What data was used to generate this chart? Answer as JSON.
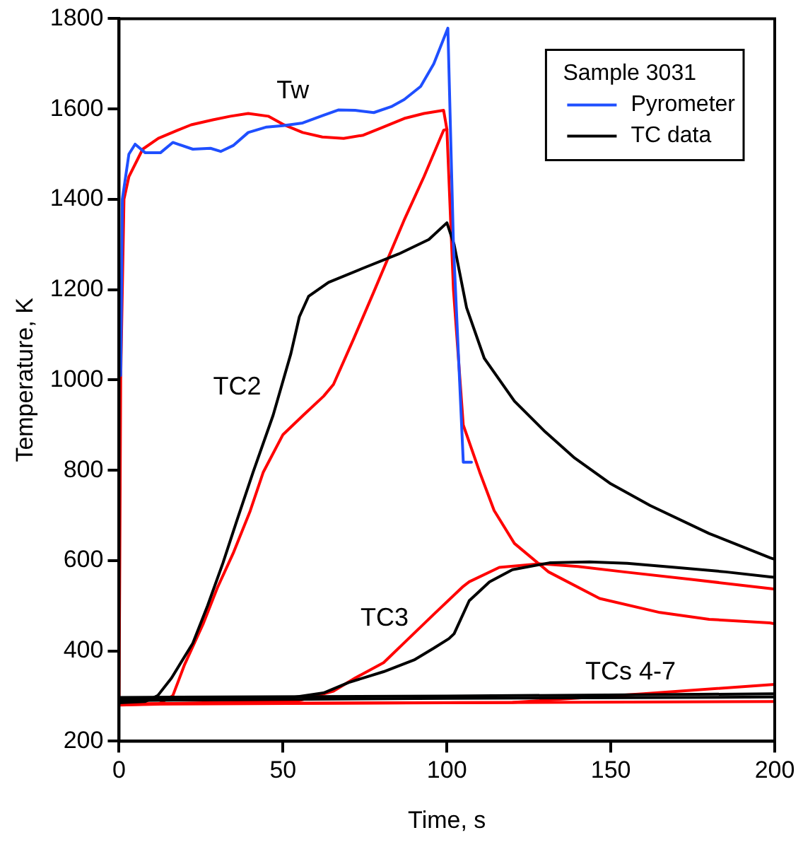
{
  "chart_data": {
    "type": "line",
    "xlabel": "Time, s",
    "ylabel": "Temperature, K",
    "legend_title": "Sample 3031",
    "legend": "top right",
    "grid": false,
    "marker": "none",
    "line_style": "solid",
    "xlim": [
      0,
      200
    ],
    "xticks": [
      0,
      50,
      100,
      150,
      200
    ],
    "ylim": [
      200,
      1800
    ],
    "yticks": [
      200,
      400,
      600,
      800,
      1000,
      1200,
      1400,
      1600,
      1800
    ],
    "annotations": [
      "Tw",
      "TC2",
      "TC3",
      "TCs 4-7"
    ],
    "series": [
      {
        "name": "Pyrometer",
        "color": "#1f4fff",
        "x": [
          0.5,
          1,
          3,
          4.9,
          8,
          12.6,
          16.4,
          22.5,
          27.9,
          31,
          34.8,
          39.4,
          45,
          50,
          56,
          62,
          67,
          72,
          77.7,
          83,
          87,
          92,
          96,
          100.3,
          102,
          105,
          107.5
        ],
        "values": [
          1010,
          1400,
          1500,
          1522,
          1503,
          1503,
          1526,
          1511,
          1513,
          1506,
          1519,
          1548,
          1560,
          1563,
          1569,
          1585,
          1598,
          1597,
          1592,
          1605,
          1621,
          1650,
          1700,
          1779,
          1300,
          818,
          818
        ]
      },
      {
        "name": "TC data",
        "color": "#000000",
        "x": [
          0,
          8,
          11.8,
          16,
          22.5,
          27,
          31.7,
          36,
          40.9,
          47,
          52.4,
          55,
          57.8,
          63.9,
          74.6,
          85.3,
          94.5,
          100,
          102.2,
          106,
          111.4,
          120.6,
          130,
          139,
          150,
          162,
          180,
          198.7,
          200
        ],
        "values": [
          285,
          288,
          301,
          340,
          417,
          500,
          595,
          690,
          796,
          922,
          1058,
          1140,
          1185,
          1216,
          1248,
          1279,
          1311,
          1348,
          1300,
          1160,
          1048,
          953,
          885,
          827,
          770,
          722,
          660,
          606,
          603
        ]
      },
      {
        "color": "#000000",
        "x": [
          0,
          50,
          62.4,
          70,
          80.7,
          90,
          96,
          100.6,
          102.2,
          106.8,
          113,
          120,
          131.3,
          143.5,
          155,
          169.6,
          185,
          198.7,
          200
        ],
        "values": [
          292,
          294,
          307,
          330,
          354,
          380,
          406,
          427,
          438,
          511,
          553,
          580,
          595,
          597,
          594,
          585,
          575,
          564,
          563
        ]
      },
      {
        "color": "#000000",
        "x": [
          0,
          100,
          200
        ],
        "values": [
          297,
          300,
          305
        ]
      },
      {
        "color": "#000000",
        "x": [
          0,
          100,
          200
        ],
        "values": [
          290,
          295,
          298
        ]
      },
      {
        "color": "#ff0000",
        "x": [
          0,
          0.5,
          1.5,
          3,
          7.2,
          12,
          17.9,
          22,
          28.6,
          34,
          39.4,
          45.5,
          50,
          56,
          62,
          68.5,
          74.5,
          80,
          87,
          93,
          99,
          100,
          102,
          105,
          110,
          114.4,
          120.6,
          131,
          146.6,
          165,
          180,
          198.5,
          200
        ],
        "values": [
          280,
          1000,
          1400,
          1450,
          1511,
          1535,
          1553,
          1565,
          1576,
          1584,
          1590,
          1584,
          1566,
          1548,
          1538,
          1535,
          1542,
          1558,
          1579,
          1590,
          1597,
          1555,
          1200,
          900,
          796,
          711,
          638,
          575,
          516,
          485,
          470,
          462,
          460
        ]
      },
      {
        "color": "#ff0000",
        "x": [
          0,
          12,
          16.4,
          20,
          25.6,
          30,
          34.8,
          40,
          44,
          50,
          56.2,
          62.4,
          65.4,
          71.5,
          77.7,
          86.9,
          93,
          99,
          100
        ],
        "values": [
          280,
          282,
          301,
          370,
          459,
          540,
          616,
          710,
          796,
          879,
          922,
          964,
          990,
          1090,
          1195,
          1353,
          1450,
          1553,
          1555
        ]
      },
      {
        "color": "#ff0000",
        "x": [
          0,
          55,
          65.4,
          72,
          80.7,
          88,
          96,
          105,
          106.8,
          116,
          128.2,
          140,
          154,
          175,
          198.7,
          200
        ],
        "values": [
          281,
          290,
          311,
          340,
          374,
          425,
          481,
          543,
          553,
          585,
          593,
          587,
          575,
          558,
          538,
          537
        ]
      },
      {
        "color": "#ff0000",
        "x": [
          0,
          120,
          160,
          200
        ],
        "values": [
          283,
          286,
          305,
          326
        ]
      },
      {
        "color": "#ff0000",
        "x": [
          0,
          100,
          200
        ],
        "values": [
          282,
          285,
          288
        ]
      }
    ]
  }
}
